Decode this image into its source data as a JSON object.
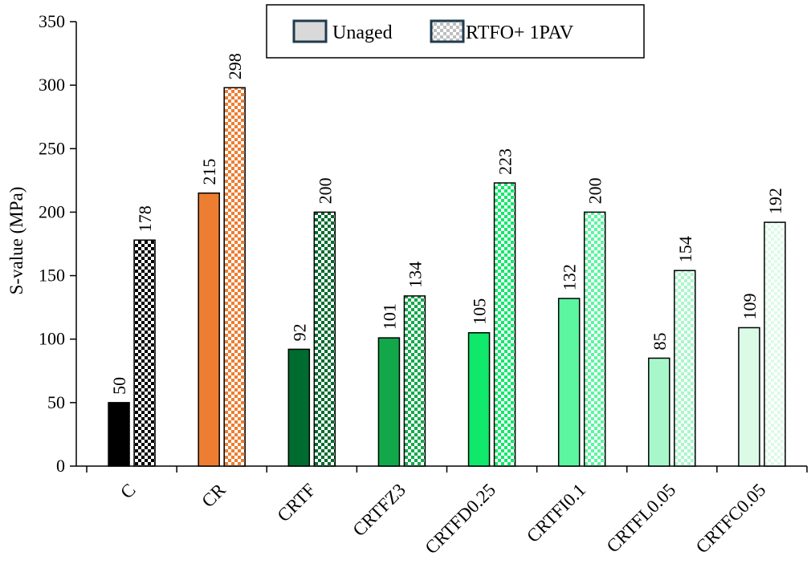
{
  "chart_data": {
    "type": "bar",
    "categories": [
      "C",
      "CR",
      "CRTF",
      "CRTFZ3",
      "CRTFD0.25",
      "CRTFI0.1",
      "CRTFL0.05",
      "CRTFC0.05"
    ],
    "series": [
      {
        "name": "Unaged",
        "values": [
          50,
          215,
          92,
          101,
          105,
          132,
          85,
          109
        ],
        "pattern": "solid"
      },
      {
        "name": "RTFO+ 1PAV",
        "values": [
          178,
          298,
          200,
          134,
          223,
          200,
          154,
          192
        ],
        "pattern": "checker"
      }
    ],
    "colors": [
      "#000000",
      "#ED7D31",
      "#006B2E",
      "#12A84A",
      "#0FE86A",
      "#5CF5A0",
      "#A8F7CA",
      "#DCFBE7"
    ],
    "data_labels": {
      "unaged": [
        "50",
        "215",
        "92",
        "101",
        "105",
        "132",
        "85",
        "109"
      ],
      "aged": [
        "178",
        "298",
        "200",
        "134",
        "223",
        "200",
        "154",
        "192"
      ]
    },
    "title": "",
    "xlabel": "",
    "ylabel": "S-value (MPa)",
    "ylim": [
      0,
      350
    ],
    "yticks": [
      "0",
      "50",
      "100",
      "150",
      "200",
      "250",
      "300",
      "350"
    ],
    "grid": false,
    "legend_position": "top-center",
    "legend_swatch_color": "#d9d9d9",
    "legend_border_color": "#1f3b4d"
  }
}
